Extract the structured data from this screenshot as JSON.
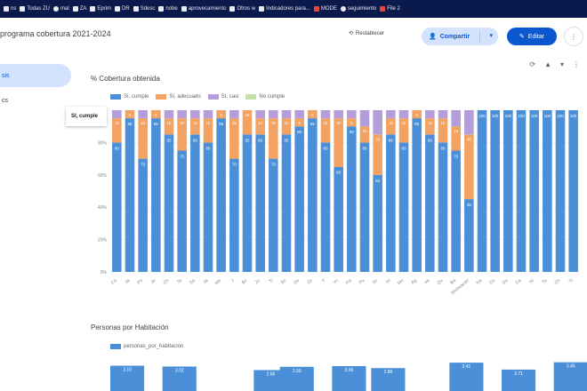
{
  "bookmarks": [
    {
      "label": "ns",
      "icon": "page-icon"
    },
    {
      "label": "Todas ZU",
      "icon": "folder-icon"
    },
    {
      "label": "mal",
      "icon": "mail-icon"
    },
    {
      "label": "ZA",
      "icon": "folder-icon"
    },
    {
      "label": "Eprim",
      "icon": "folder-icon"
    },
    {
      "label": "DR",
      "icon": "folder-icon"
    },
    {
      "label": "Sdesc",
      "icon": "folder-icon"
    },
    {
      "label": "nobe",
      "icon": "folder-icon"
    },
    {
      "label": "aprovecamiento",
      "icon": "folder-icon"
    },
    {
      "label": "Otros w",
      "icon": "folder-icon"
    },
    {
      "label": "Indicadores para...",
      "icon": "folder-icon"
    },
    {
      "label": "MODE",
      "icon": "red-icon"
    },
    {
      "label": "seguimiento",
      "icon": "globe-icon"
    },
    {
      "label": "File 2",
      "icon": "red-icon"
    }
  ],
  "header": {
    "title": "programa cobertura 2021-2024",
    "history_label": "Restablecer",
    "share_label": "Compartir",
    "edit_label": "Editar",
    "more_icon": "more-vert-icon"
  },
  "sidebar": {
    "items": [
      {
        "label": "sis",
        "active": true
      },
      {
        "label": "cs",
        "active": false
      }
    ]
  },
  "main": {
    "toolbar_icons": [
      "refresh-icon",
      "warning-icon",
      "filter-icon",
      "more-vert-icon"
    ]
  },
  "chart_data": [
    {
      "type": "bar",
      "stacked": true,
      "title": "% Cobertura obtenida",
      "tooltip": "SI, cumple",
      "legend_position": "top-left",
      "series": [
        {
          "name": "SI, cumple",
          "color": "#4a8fd8",
          "values": [
            80,
            95,
            70,
            95,
            85,
            75,
            85,
            80,
            95,
            70,
            85,
            85,
            70,
            85,
            90,
            95,
            80,
            65,
            90,
            80,
            60,
            85,
            80,
            95,
            85,
            80,
            75,
            45,
            100,
            100,
            100,
            100,
            100,
            100,
            100,
            100
          ]
        },
        {
          "name": "SI, adecuado",
          "color": "#f4a261",
          "values": [
            15,
            5,
            25,
            5,
            10,
            20,
            10,
            15,
            5,
            25,
            15,
            10,
            25,
            10,
            5,
            5,
            15,
            30,
            5,
            10,
            25,
            10,
            15,
            5,
            10,
            15,
            15,
            40,
            0,
            0,
            0,
            0,
            0,
            0,
            0,
            0
          ]
        },
        {
          "name": "SI, casi",
          "color": "#b39ddb",
          "values": [
            5,
            0,
            5,
            0,
            5,
            5,
            5,
            5,
            0,
            5,
            0,
            5,
            5,
            5,
            5,
            0,
            5,
            5,
            5,
            10,
            15,
            5,
            5,
            0,
            5,
            5,
            10,
            15,
            0,
            0,
            0,
            0,
            0,
            0,
            0,
            0
          ]
        }
      ],
      "extra_legend": "No cumple",
      "extra_legend_color": "#c5e1a5",
      "ytick_labels": [
        "0%",
        "20%",
        "40%",
        "60%",
        "80%",
        "100%"
      ],
      "ylim": [
        0,
        100
      ],
      "grid": true,
      "categories": [
        "Ca",
        "Ja",
        "Pa",
        "Ar",
        "Ch",
        "Ta",
        "Sa",
        "Ja",
        "Ma",
        "J",
        "Bc",
        "Zc",
        "Tl",
        "Sn",
        "Ov",
        "Gr",
        "Y",
        "Yc",
        "Ha",
        "Pu",
        "Sc",
        "Hi",
        "Mo",
        "Ag",
        "Ve",
        "Qu",
        "Ba",
        "Michoacán",
        "Na",
        "Co",
        "Du",
        "Ca",
        "Ni",
        "To",
        "Ch",
        "Tl"
      ],
      "bar_labels_top": [
        "15",
        "5",
        "25",
        "5",
        "10",
        "20",
        "10",
        "15",
        "5",
        "25",
        "15",
        "10",
        "25",
        "10",
        "5",
        "5",
        "15",
        "30",
        "5",
        "10",
        "25",
        "10",
        "15",
        "5",
        "10",
        "15",
        "15",
        "40",
        "",
        "",
        "",
        "",
        "",
        "",
        "",
        ""
      ],
      "bar_labels_main": [
        "80",
        "95",
        "70",
        "95",
        "85",
        "75",
        "85",
        "80",
        "95",
        "70",
        "85",
        "85",
        "70",
        "85",
        "90",
        "95",
        "80",
        "65",
        "90",
        "80",
        "60",
        "85",
        "80",
        "95",
        "85",
        "80",
        "75",
        "45",
        "100",
        "100",
        "100",
        "100",
        "100",
        "100",
        "100",
        "100"
      ]
    },
    {
      "type": "bar",
      "title": "Personas por Habitación",
      "legend": "personas_por_habitacion",
      "color": "#4a8fd8",
      "value_labels": [
        "3.10",
        "3.02",
        "2.66",
        "2.99",
        "3.06",
        "2.86",
        "3.41",
        "2.71",
        "3.45"
      ]
    }
  ]
}
